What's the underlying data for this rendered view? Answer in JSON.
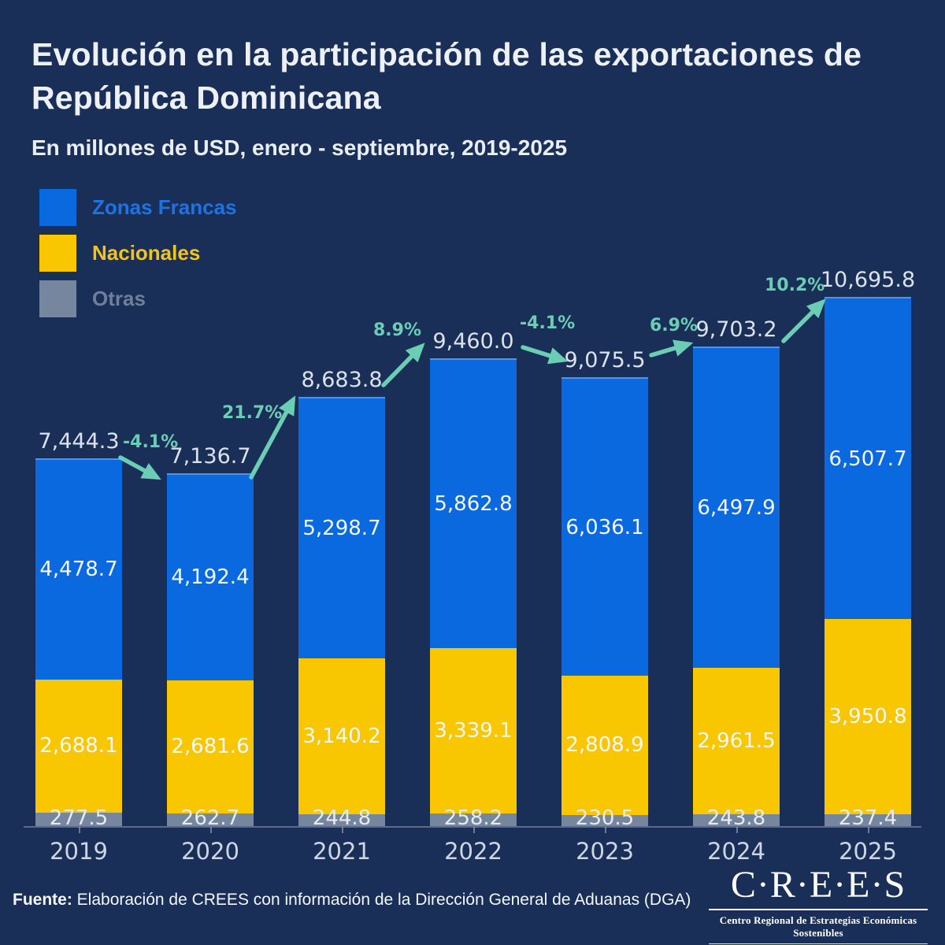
{
  "title": "Evolución en la participación de las exportaciones de República Dominicana",
  "subtitle": "En millones de USD, enero - septiembre, 2019-2025",
  "legend": [
    {
      "key": "zonas-francas",
      "label": "Zonas Francas",
      "color": "#0a69df",
      "text_color": "#1d72e4"
    },
    {
      "key": "nacionales",
      "label": "Nacionales",
      "color": "#f8c701",
      "text_color": "#f0c419"
    },
    {
      "key": "otras",
      "label": "Otras",
      "color": "#76869f",
      "text_color": "#6f7f99"
    }
  ],
  "chart_data": {
    "type": "bar",
    "stacked": true,
    "title": "Evolución en la participación de las exportaciones de República Dominicana",
    "subtitle": "En millones de USD, enero - septiembre, 2019-2025",
    "unit": "millones de USD",
    "categories": [
      "2019",
      "2020",
      "2021",
      "2022",
      "2023",
      "2024",
      "2025"
    ],
    "series": [
      {
        "name": "Zonas Francas",
        "values": [
          4478.7,
          4192.4,
          5298.7,
          5862.8,
          6036.1,
          6497.9,
          6507.7
        ],
        "labels": [
          "4,478.7",
          "4,192.4",
          "5,298.7",
          "5,862.8",
          "6,036.1",
          "6,497.9",
          "6,507.7"
        ],
        "color": "#0a69df"
      },
      {
        "name": "Nacionales",
        "values": [
          2688.1,
          2681.6,
          3140.2,
          3339.1,
          2808.9,
          2961.5,
          3950.8
        ],
        "labels": [
          "2,688.1",
          "2,681.6",
          "3,140.2",
          "3,339.1",
          "2,808.9",
          "2,961.5",
          "3,950.8"
        ],
        "color": "#f8c701"
      },
      {
        "name": "Otras",
        "values": [
          277.5,
          262.7,
          244.8,
          258.2,
          230.5,
          243.8,
          237.4
        ],
        "labels": [
          "277.5",
          "262.7",
          "244.8",
          "258.2",
          "230.5",
          "243.8",
          "237.4"
        ],
        "color": "#76869f"
      }
    ],
    "totals": [
      7444.3,
      7136.7,
      8683.8,
      9460.0,
      9075.5,
      9703.2,
      10695.8
    ],
    "total_labels": [
      "7,444.3",
      "7,136.7",
      "8,683.8",
      "9,460.0",
      "9,075.5",
      "9,703.2",
      "10,695.8"
    ],
    "pct_changes": [
      "-4.1%",
      "21.7%",
      "8.9%",
      "-4.1%",
      "6.9%",
      "10.2%"
    ],
    "ylim": [
      0,
      10695.8
    ],
    "grid": false,
    "legend_position": "top-left",
    "accent_color": "#6bceb4"
  },
  "footer": {
    "source_bold": "Fuente:",
    "source_rest": " Elaboración de CREES con información de la Dirección General de Aduanas (DGA)",
    "logo_text": "C·R·E·E·S",
    "logo_tagline": "Centro Regional de Estrategias Económicas Sostenibles"
  },
  "colors": {
    "background": "#1a2f58",
    "bar_blue": "#0a69df",
    "bar_yellow": "#f8c701",
    "bar_gray": "#76869f",
    "arrow_teal": "#6bceb4",
    "text_light": "#edf1f7"
  }
}
